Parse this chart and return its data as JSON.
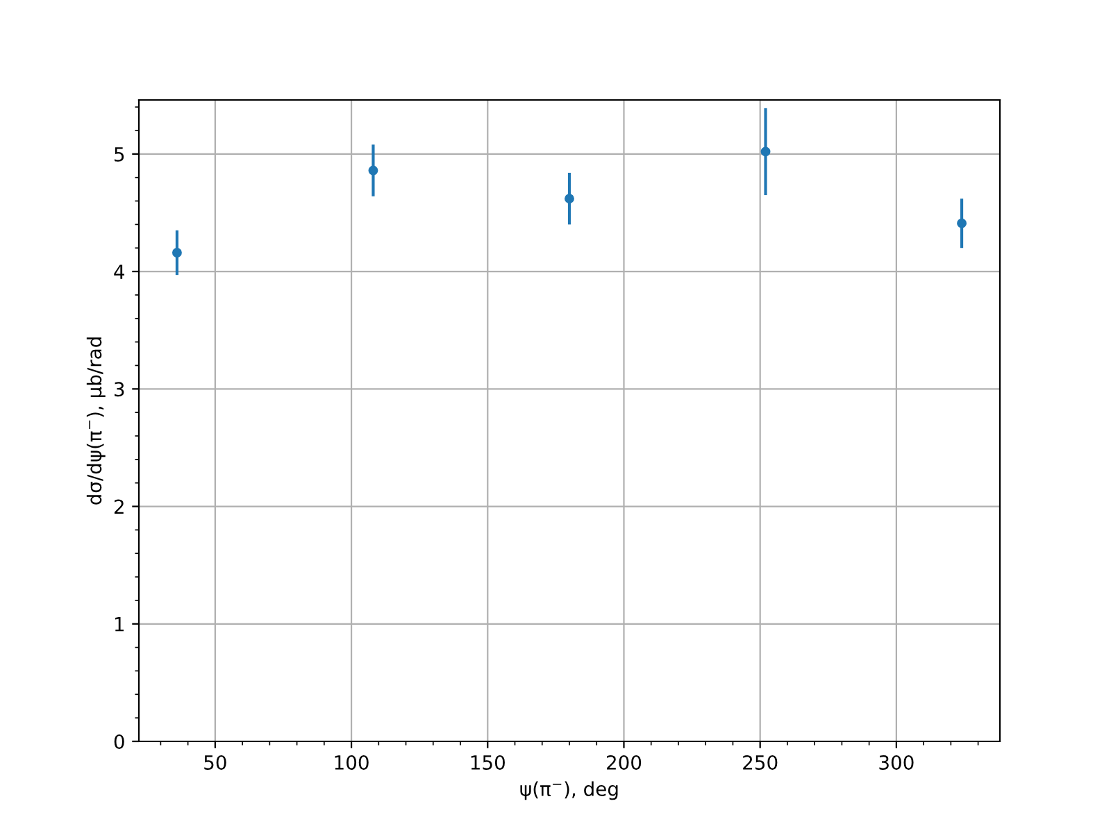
{
  "chart_data": {
    "type": "scatter",
    "xlabel": "ψ(π$^{−}$), deg",
    "ylabel": "dσ/dψ(π$^{−}$), μb/rad",
    "x": [
      36,
      108,
      180,
      252,
      324
    ],
    "series": [
      {
        "color": "#1f77b4",
        "values": [
          4.16,
          4.86,
          4.62,
          5.02,
          4.41
        ],
        "errors": [
          0.19,
          0.22,
          0.22,
          0.37,
          0.21
        ]
      }
    ],
    "xlim": [
      22,
      338
    ],
    "ylim": [
      0,
      5.46
    ],
    "xticks": [
      50,
      100,
      150,
      200,
      250,
      300
    ],
    "yticks": [
      0,
      1,
      2,
      3,
      4,
      5
    ],
    "marker": "circle",
    "grid": true
  }
}
